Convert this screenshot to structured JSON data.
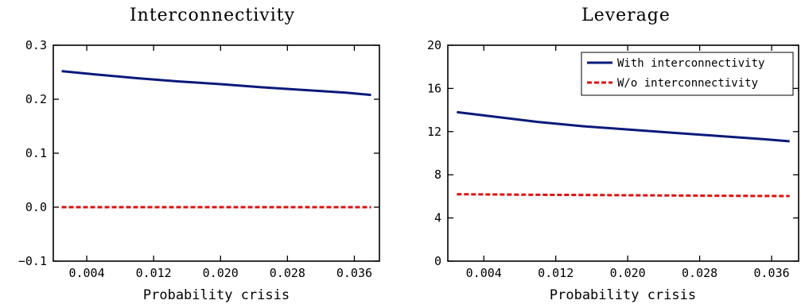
{
  "chart_data": [
    {
      "type": "line",
      "title": "Interconnectivity",
      "xlabel": "Probability crisis",
      "ylabel": "",
      "xlim": [
        0.0,
        0.039
      ],
      "ylim": [
        -0.1,
        0.3
      ],
      "x_ticks": [
        0.004,
        0.012,
        0.02,
        0.028,
        0.036
      ],
      "x_tick_labels": [
        "0.004",
        "0.012",
        "0.020",
        "0.028",
        "0.036"
      ],
      "y_ticks": [
        -0.1,
        0.0,
        0.1,
        0.2,
        0.3
      ],
      "y_tick_labels": [
        "−0.1",
        "0.0",
        "0.1",
        "0.2",
        "0.3"
      ],
      "grid": false,
      "legend": false,
      "series": [
        {
          "name": "With interconnectivity",
          "color": "#0a1a7a",
          "style": "solid",
          "x": [
            0.001,
            0.005,
            0.01,
            0.015,
            0.02,
            0.025,
            0.03,
            0.035,
            0.038
          ],
          "values": [
            0.252,
            0.246,
            0.239,
            0.233,
            0.228,
            0.222,
            0.217,
            0.212,
            0.208
          ]
        },
        {
          "name": "W/o interconnectivity",
          "color": "#e01010",
          "style": "dashed",
          "x": [
            0.001,
            0.005,
            0.01,
            0.015,
            0.02,
            0.025,
            0.03,
            0.035,
            0.038
          ],
          "values": [
            0.0,
            0.0,
            0.0,
            0.0,
            0.0,
            0.0,
            0.0,
            0.0,
            0.0
          ]
        }
      ]
    },
    {
      "type": "line",
      "title": "Leverage",
      "xlabel": "Probability crisis",
      "ylabel": "",
      "xlim": [
        0.0,
        0.039
      ],
      "ylim": [
        0,
        20
      ],
      "x_ticks": [
        0.004,
        0.012,
        0.02,
        0.028,
        0.036
      ],
      "x_tick_labels": [
        "0.004",
        "0.012",
        "0.020",
        "0.028",
        "0.036"
      ],
      "y_ticks": [
        0,
        4,
        8,
        12,
        16,
        20
      ],
      "y_tick_labels": [
        "0",
        "4",
        "8",
        "12",
        "16",
        "20"
      ],
      "grid": false,
      "legend": true,
      "legend_position": "top-right",
      "series": [
        {
          "name": "With interconnectivity",
          "color": "#0a1a7a",
          "style": "solid",
          "x": [
            0.001,
            0.005,
            0.01,
            0.015,
            0.02,
            0.025,
            0.03,
            0.035,
            0.038
          ],
          "values": [
            13.8,
            13.4,
            12.9,
            12.5,
            12.2,
            11.9,
            11.6,
            11.3,
            11.1
          ]
        },
        {
          "name": "W/o interconnectivity",
          "color": "#e01010",
          "style": "dashed",
          "x": [
            0.001,
            0.005,
            0.01,
            0.015,
            0.02,
            0.025,
            0.03,
            0.035,
            0.038
          ],
          "values": [
            6.2,
            6.18,
            6.15,
            6.13,
            6.1,
            6.08,
            6.06,
            6.04,
            6.03
          ]
        }
      ]
    }
  ]
}
